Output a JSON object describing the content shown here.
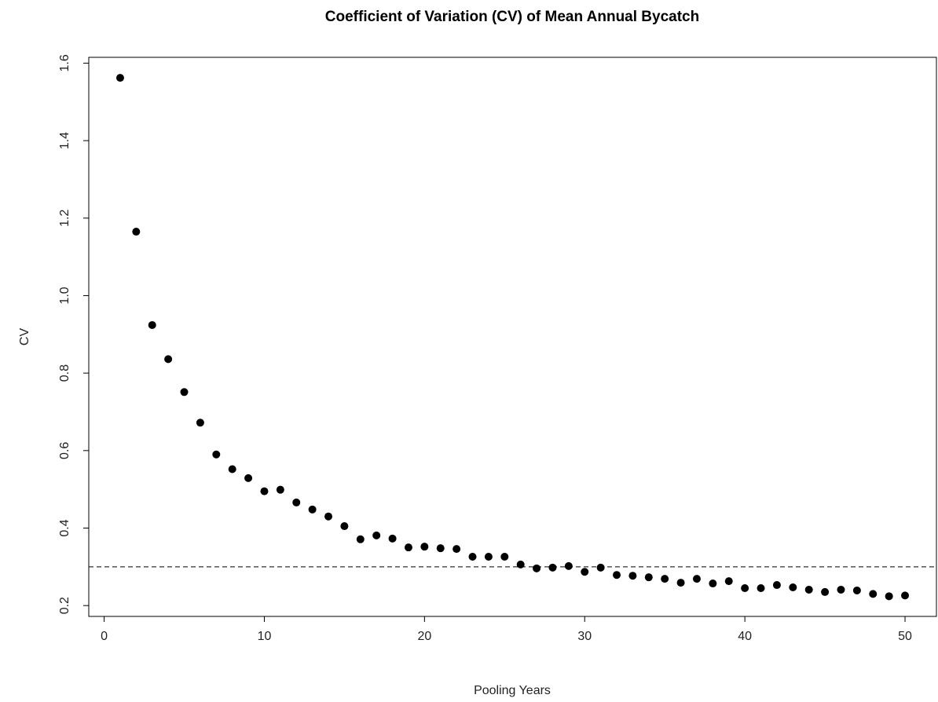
{
  "chart_data": {
    "type": "scatter",
    "title": "Coefficient of Variation (CV) of Mean Annual Bycatch",
    "x_label": "Pooling Years",
    "y_label": "CV",
    "x": [
      1,
      2,
      3,
      4,
      5,
      6,
      7,
      8,
      9,
      10,
      11,
      12,
      13,
      14,
      15,
      16,
      17,
      18,
      19,
      20,
      21,
      22,
      23,
      24,
      25,
      26,
      27,
      28,
      29,
      30,
      31,
      32,
      33,
      34,
      35,
      36,
      37,
      38,
      39,
      40,
      41,
      42,
      43,
      44,
      45,
      46,
      47,
      48,
      49,
      50
    ],
    "values": [
      1.562,
      1.165,
      0.924,
      0.836,
      0.751,
      0.672,
      0.59,
      0.552,
      0.529,
      0.495,
      0.499,
      0.466,
      0.448,
      0.43,
      0.405,
      0.371,
      0.381,
      0.373,
      0.35,
      0.352,
      0.348,
      0.346,
      0.326,
      0.326,
      0.326,
      0.306,
      0.296,
      0.298,
      0.302,
      0.287,
      0.298,
      0.279,
      0.277,
      0.273,
      0.269,
      0.259,
      0.269,
      0.257,
      0.263,
      0.245,
      0.245,
      0.253,
      0.247,
      0.241,
      0.235,
      0.241,
      0.239,
      0.23,
      0.224,
      0.226
    ],
    "color": "#000000",
    "hline": 0.3,
    "xlim": [
      -0.96,
      51.96
    ],
    "ylim": [
      0.172,
      1.615
    ],
    "xticks": [
      0,
      10,
      20,
      30,
      40,
      50
    ],
    "yticks": [
      0.2,
      0.4,
      0.6,
      0.8,
      {
        "value": 1,
        "label": "1.0"
      },
      1.2,
      1.4,
      1.6
    ]
  }
}
